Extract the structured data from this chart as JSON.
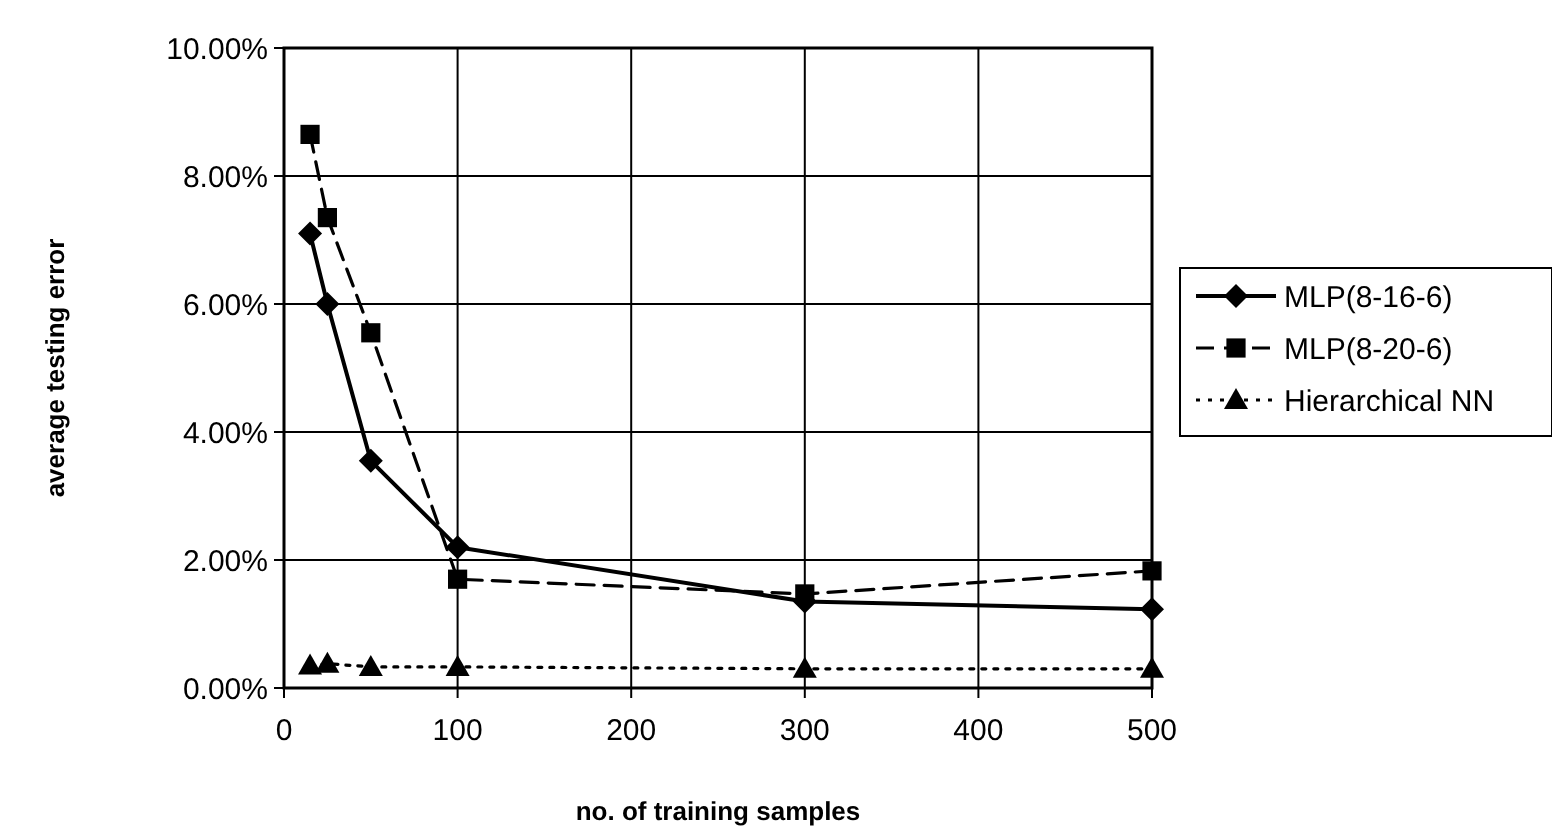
{
  "chart_data": {
    "type": "line",
    "xlabel": "no. of training samples",
    "ylabel": "average testing error",
    "x": [
      15,
      25,
      50,
      100,
      300,
      500
    ],
    "series": [
      {
        "name": "MLP(8-16-6)",
        "color": "#000000",
        "values": [
          7.1,
          6.0,
          3.55,
          2.2,
          1.35,
          1.23
        ],
        "marker": "diamond",
        "line_style": "solid"
      },
      {
        "name": "MLP(8-20-6)",
        "color": "#000000",
        "values": [
          8.65,
          7.35,
          5.55,
          1.7,
          1.47,
          1.83
        ],
        "marker": "square",
        "line_style": "dashed"
      },
      {
        "name": "Hierarchical NN",
        "color": "#000000",
        "values": [
          0.35,
          0.38,
          0.33,
          0.33,
          0.3,
          0.3
        ],
        "marker": "triangle",
        "line_style": "dotted"
      }
    ],
    "xlim": [
      0,
      500
    ],
    "xticks": [
      0,
      100,
      200,
      300,
      400,
      500
    ],
    "ylim": [
      0,
      10
    ],
    "yticks": [
      {
        "value": 0,
        "label": "0.00%"
      },
      {
        "value": 2,
        "label": "2.00%"
      },
      {
        "value": 4,
        "label": "4.00%"
      },
      {
        "value": 6,
        "label": "6.00%"
      },
      {
        "value": 8,
        "label": "8.00%"
      },
      {
        "value": 10,
        "label": "10.00%"
      }
    ],
    "grid": true,
    "legend": "right"
  }
}
